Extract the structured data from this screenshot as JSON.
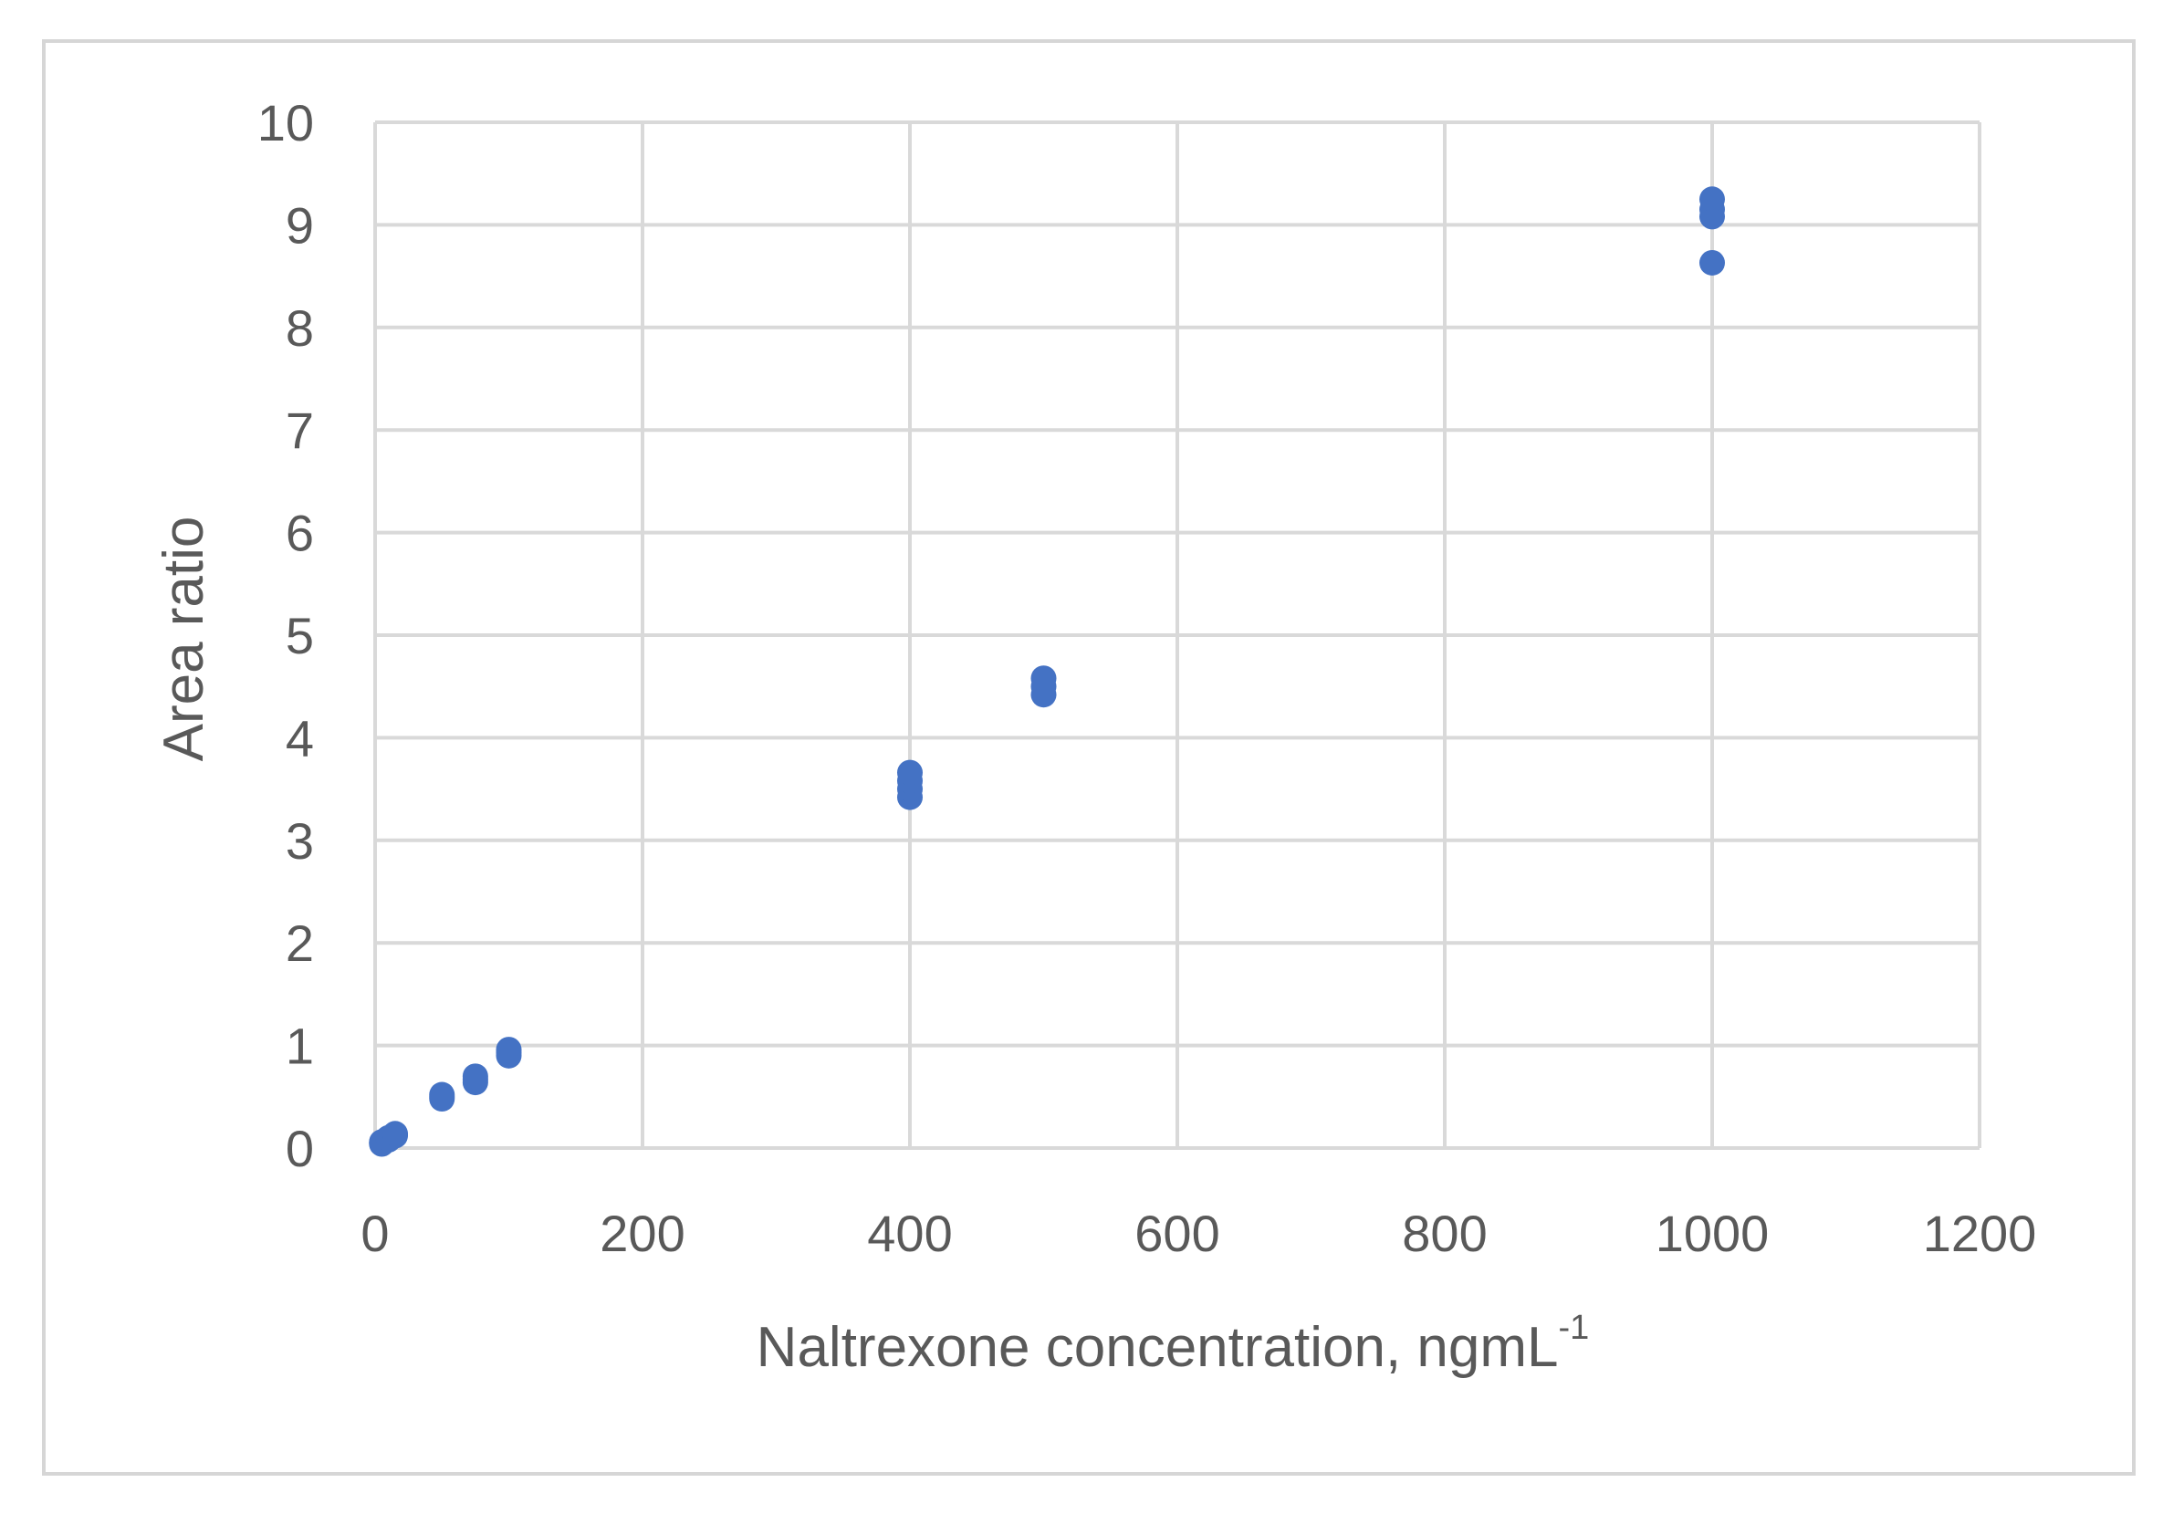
{
  "chart_data": {
    "type": "scatter",
    "title": "",
    "xlabel": "Naltrexone concentration, ngmL",
    "xlabel_superscript": "-1",
    "ylabel": "Area ratio",
    "xlim": [
      0,
      1200
    ],
    "ylim": [
      0,
      10
    ],
    "x_ticks": [
      "0",
      "200",
      "400",
      "600",
      "800",
      "1000",
      "1200"
    ],
    "y_ticks": [
      "0",
      "1",
      "2",
      "3",
      "4",
      "5",
      "6",
      "7",
      "8",
      "9",
      "10"
    ],
    "grid": true,
    "legend": "none",
    "marker_color": "#4472c4",
    "series": [
      {
        "points": [
          {
            "x": 5,
            "y": 0.05
          },
          {
            "x": 5,
            "y": 0.04
          },
          {
            "x": 5,
            "y": 0.06
          },
          {
            "x": 10,
            "y": 0.08
          },
          {
            "x": 10,
            "y": 0.09
          },
          {
            "x": 10,
            "y": 0.1
          },
          {
            "x": 15,
            "y": 0.12
          },
          {
            "x": 15,
            "y": 0.13
          },
          {
            "x": 15,
            "y": 0.14
          },
          {
            "x": 50,
            "y": 0.48
          },
          {
            "x": 50,
            "y": 0.5
          },
          {
            "x": 50,
            "y": 0.52
          },
          {
            "x": 75,
            "y": 0.64
          },
          {
            "x": 75,
            "y": 0.67
          },
          {
            "x": 75,
            "y": 0.7
          },
          {
            "x": 100,
            "y": 0.9
          },
          {
            "x": 100,
            "y": 0.93
          },
          {
            "x": 100,
            "y": 0.96
          },
          {
            "x": 400,
            "y": 3.42
          },
          {
            "x": 400,
            "y": 3.5
          },
          {
            "x": 400,
            "y": 3.58
          },
          {
            "x": 400,
            "y": 3.66
          },
          {
            "x": 500,
            "y": 4.42
          },
          {
            "x": 500,
            "y": 4.5
          },
          {
            "x": 500,
            "y": 4.58
          },
          {
            "x": 1000,
            "y": 8.63
          },
          {
            "x": 1000,
            "y": 9.08
          },
          {
            "x": 1000,
            "y": 9.15
          },
          {
            "x": 1000,
            "y": 9.25
          }
        ]
      }
    ]
  }
}
